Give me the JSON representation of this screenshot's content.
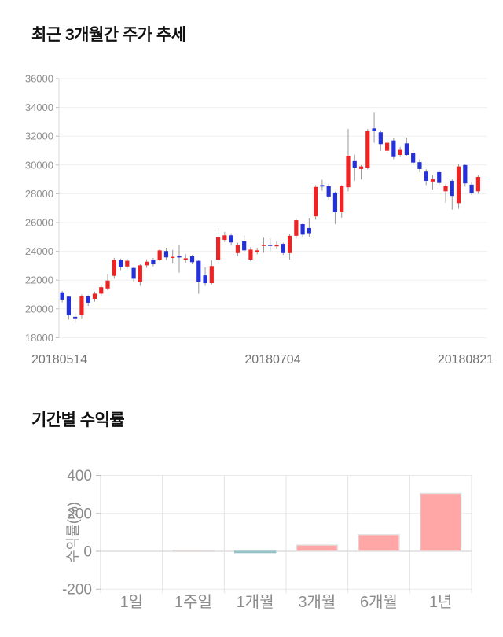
{
  "page": {
    "background": "#ffffff"
  },
  "chart_data": [
    {
      "type": "candlestick",
      "title": "최근 3개월간 주가 추세",
      "y_ticks": [
        36000,
        34000,
        32000,
        30000,
        28000,
        26000,
        24000,
        22000,
        20000,
        18000
      ],
      "ylim": [
        18000,
        36000
      ],
      "x_axis_labels": [
        "20180514",
        "20180704",
        "20180821"
      ],
      "grid": true,
      "colors": {
        "up": "#ee2424",
        "down": "#2431d8",
        "wick": "#999999",
        "gridline": "#efefef",
        "axis": "#d9d9d9",
        "tick_text": "#8f8f8f",
        "x_label_text": "#737373"
      },
      "ohlc_order": [
        "open",
        "high",
        "low",
        "close"
      ],
      "candles": [
        [
          21150,
          21250,
          20450,
          20650
        ],
        [
          20850,
          20900,
          19250,
          19550
        ],
        [
          19450,
          19700,
          19000,
          19350
        ],
        [
          19600,
          21000,
          19350,
          20900
        ],
        [
          20880,
          20950,
          20200,
          20430
        ],
        [
          20700,
          21200,
          20500,
          21060
        ],
        [
          21060,
          21650,
          20900,
          21510
        ],
        [
          21420,
          22420,
          21300,
          21970
        ],
        [
          22300,
          23550,
          22100,
          23400
        ],
        [
          23400,
          23500,
          22700,
          22900
        ],
        [
          22950,
          23500,
          22800,
          23350
        ],
        [
          22850,
          22950,
          21900,
          22100
        ],
        [
          21880,
          23100,
          21600,
          23030
        ],
        [
          23030,
          23450,
          22850,
          23280
        ],
        [
          23430,
          23550,
          22950,
          23100
        ],
        [
          23430,
          24150,
          23300,
          24070
        ],
        [
          24020,
          24250,
          23400,
          23580
        ],
        [
          23590,
          24100,
          23150,
          23620
        ],
        [
          23650,
          24430,
          22520,
          23600
        ],
        [
          23400,
          23800,
          23200,
          23520
        ],
        [
          23650,
          23750,
          23100,
          23250
        ],
        [
          23340,
          23400,
          21050,
          21900
        ],
        [
          22330,
          22900,
          21600,
          21790
        ],
        [
          21790,
          23380,
          21700,
          22980
        ],
        [
          23430,
          25620,
          23240,
          24980
        ],
        [
          24800,
          25350,
          24650,
          25110
        ],
        [
          25110,
          25250,
          24400,
          24620
        ],
        [
          23880,
          24600,
          23700,
          24470
        ],
        [
          24710,
          25100,
          23950,
          24070
        ],
        [
          23430,
          24300,
          23300,
          24120
        ],
        [
          23950,
          24250,
          23800,
          24070
        ],
        [
          24400,
          24950,
          23900,
          24450
        ],
        [
          24450,
          24900,
          24000,
          24430
        ],
        [
          24350,
          24700,
          24200,
          24470
        ],
        [
          24520,
          24600,
          23750,
          23880
        ],
        [
          23880,
          25200,
          23430,
          25080
        ],
        [
          25080,
          26300,
          24890,
          26160
        ],
        [
          25890,
          26000,
          24950,
          25160
        ],
        [
          25620,
          26320,
          25000,
          25260
        ],
        [
          26430,
          28600,
          26200,
          28470
        ],
        [
          28600,
          28980,
          28200,
          28500
        ],
        [
          28530,
          28700,
          27600,
          27810
        ],
        [
          28080,
          28150,
          25900,
          26710
        ],
        [
          26710,
          28600,
          26340,
          28530
        ],
        [
          28450,
          32500,
          28170,
          30630
        ],
        [
          30270,
          30720,
          28900,
          29810
        ],
        [
          29720,
          30000,
          28990,
          29900
        ],
        [
          29810,
          32500,
          29700,
          32360
        ],
        [
          32540,
          33630,
          31540,
          32360
        ],
        [
          32270,
          32400,
          30990,
          31450
        ],
        [
          30990,
          31700,
          30800,
          31540
        ],
        [
          31700,
          31850,
          30400,
          30550
        ],
        [
          30700,
          31250,
          30550,
          31050
        ],
        [
          31500,
          31900,
          30600,
          30700
        ],
        [
          30810,
          31000,
          30000,
          30170
        ],
        [
          30200,
          30400,
          29500,
          29720
        ],
        [
          29540,
          29700,
          28600,
          28900
        ],
        [
          28850,
          29300,
          28300,
          29000
        ],
        [
          29500,
          29650,
          28600,
          28750
        ],
        [
          28170,
          28650,
          27370,
          28530
        ],
        [
          28900,
          29000,
          26890,
          27850
        ],
        [
          27350,
          30050,
          26950,
          29900
        ],
        [
          30000,
          30100,
          28500,
          28720
        ],
        [
          28630,
          28800,
          27900,
          28050
        ],
        [
          28170,
          29300,
          28000,
          29170
        ]
      ]
    },
    {
      "type": "bar",
      "title": "기간별 수익률",
      "ylabel": "수익률(%)",
      "y_ticks": [
        400,
        200,
        0,
        -200
      ],
      "ylim": [
        -250,
        430
      ],
      "grid": true,
      "categories": [
        "1일",
        "1주일",
        "1개월",
        "3개월",
        "6개월",
        "1년"
      ],
      "values": [
        0,
        5,
        -2,
        33,
        88,
        305
      ],
      "colors": {
        "positive_fill": "#ffa6a6",
        "positive_border": "#e2e2e2",
        "negative_fill": "#b8d8da",
        "negative_border": "#93bfc6",
        "gridline": "#eaeaea",
        "zero_line": "#cccccc",
        "axis": "#d4d4d4",
        "tick_text": "#8c8c8c",
        "category_text": "#8c8c8c",
        "ylabel_text": "#8c8c8c"
      }
    }
  ]
}
